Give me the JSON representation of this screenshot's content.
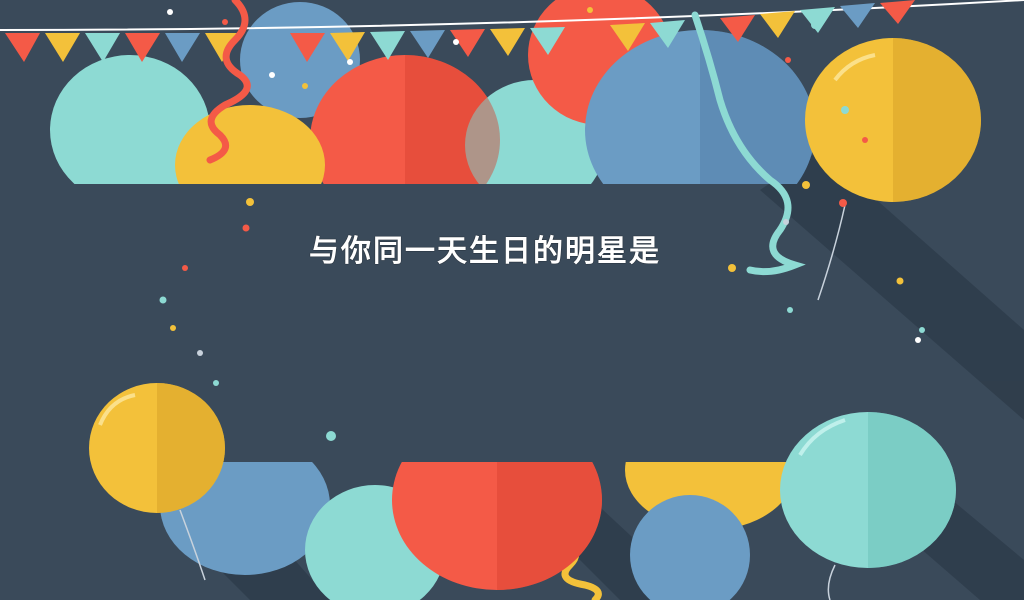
{
  "banner": {
    "title": "与你同一天生日的明星是"
  },
  "colors": {
    "background": "#3a4a5a",
    "panel": "#3a4a5a",
    "red": "#f45a47",
    "yellow": "#f3c13a",
    "blue": "#6b9cc4",
    "teal": "#8ddad3",
    "shadow": "#2f3d4b"
  }
}
